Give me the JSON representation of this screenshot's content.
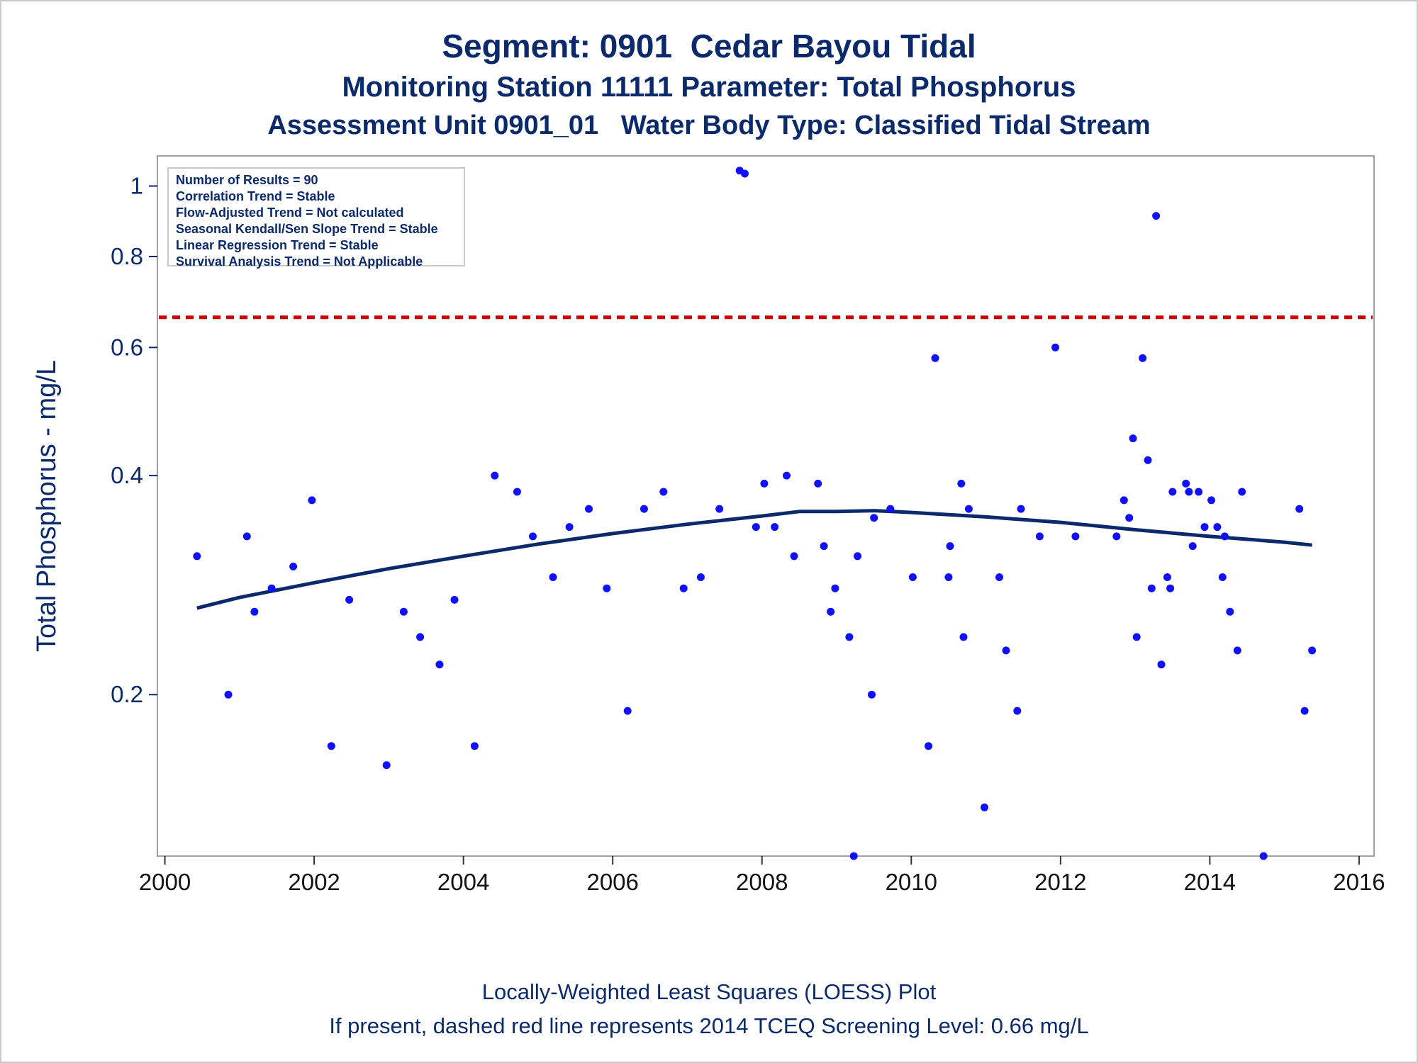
{
  "titles": {
    "line1": "Segment: 0901  Cedar Bayou Tidal",
    "line2": "Monitoring Station 11111 Parameter: Total Phosphorus",
    "line3": "Assessment Unit 0901_01   Water Body Type: Classified Tidal Stream"
  },
  "stats": [
    "Number of Results = 90",
    "Correlation Trend = Stable",
    "Flow-Adjusted Trend = Not calculated",
    "Seasonal Kendall/Sen Slope Trend = Stable",
    "Linear Regression Trend = Stable",
    "Survival Analysis Trend = Not Applicable"
  ],
  "footnotes": {
    "line1": "Locally-Weighted Least Squares (LOESS) Plot",
    "line2": "If present, dashed red line represents 2014 TCEQ Screening Level: 0.66 mg/L"
  },
  "colors": {
    "axis_text": "#0a2a6b",
    "points": "#1010ff",
    "loess": "#0a2a6b",
    "screening_line": "#cc0000",
    "frame": "#a0a0a0"
  },
  "chart_data": {
    "type": "scatter",
    "ylabel": "Total Phosphorus - mg/L",
    "xlabel": "",
    "y_scale": "log",
    "xlim": [
      1999.9,
      2016.2
    ],
    "ylim": [
      0.12,
      1.1
    ],
    "xticks": [
      2000,
      2002,
      2004,
      2006,
      2008,
      2010,
      2012,
      2014,
      2016
    ],
    "yticks": [
      {
        "value": 0.2,
        "label": "0.2"
      },
      {
        "value": 0.4,
        "label": "0.4"
      },
      {
        "value": 0.6,
        "label": "0.6"
      },
      {
        "value": 0.8,
        "label": "0.8"
      },
      {
        "value": 1.0,
        "label": "1"
      }
    ],
    "screening_level": 0.66,
    "legend": "none",
    "grid": false,
    "points": [
      [
        2000.43,
        0.31
      ],
      [
        2000.85,
        0.2
      ],
      [
        2001.1,
        0.33
      ],
      [
        2001.2,
        0.26
      ],
      [
        2001.43,
        0.28
      ],
      [
        2001.72,
        0.3
      ],
      [
        2001.97,
        0.37
      ],
      [
        2002.23,
        0.17
      ],
      [
        2002.47,
        0.27
      ],
      [
        2002.97,
        0.16
      ],
      [
        2003.2,
        0.26
      ],
      [
        2003.42,
        0.24
      ],
      [
        2003.68,
        0.22
      ],
      [
        2003.88,
        0.27
      ],
      [
        2004.15,
        0.17
      ],
      [
        2004.42,
        0.4
      ],
      [
        2004.72,
        0.38
      ],
      [
        2004.93,
        0.33
      ],
      [
        2005.2,
        0.29
      ],
      [
        2005.42,
        0.34
      ],
      [
        2005.68,
        0.36
      ],
      [
        2005.92,
        0.28
      ],
      [
        2006.2,
        0.19
      ],
      [
        2006.42,
        0.36
      ],
      [
        2006.68,
        0.38
      ],
      [
        2006.95,
        0.28
      ],
      [
        2007.18,
        0.29
      ],
      [
        2007.43,
        0.36
      ],
      [
        2007.7,
        1.05
      ],
      [
        2007.77,
        1.04
      ],
      [
        2007.92,
        0.34
      ],
      [
        2008.03,
        0.39
      ],
      [
        2008.17,
        0.34
      ],
      [
        2008.33,
        0.4
      ],
      [
        2008.43,
        0.31
      ],
      [
        2008.75,
        0.39
      ],
      [
        2008.83,
        0.32
      ],
      [
        2008.92,
        0.26
      ],
      [
        2008.98,
        0.28
      ],
      [
        2009.17,
        0.24
      ],
      [
        2009.23,
        0.12
      ],
      [
        2009.28,
        0.31
      ],
      [
        2009.47,
        0.2
      ],
      [
        2009.5,
        0.35
      ],
      [
        2009.72,
        0.36
      ],
      [
        2010.02,
        0.29
      ],
      [
        2010.23,
        0.17
      ],
      [
        2010.32,
        0.58
      ],
      [
        2010.5,
        0.29
      ],
      [
        2010.52,
        0.32
      ],
      [
        2010.67,
        0.39
      ],
      [
        2010.7,
        0.24
      ],
      [
        2010.77,
        0.36
      ],
      [
        2010.98,
        0.14
      ],
      [
        2011.18,
        0.29
      ],
      [
        2011.27,
        0.23
      ],
      [
        2011.42,
        0.19
      ],
      [
        2011.47,
        0.36
      ],
      [
        2011.72,
        0.33
      ],
      [
        2011.93,
        0.6
      ],
      [
        2012.2,
        0.33
      ],
      [
        2012.75,
        0.33
      ],
      [
        2012.85,
        0.37
      ],
      [
        2012.92,
        0.35
      ],
      [
        2012.97,
        0.45
      ],
      [
        2013.02,
        0.24
      ],
      [
        2013.1,
        0.58
      ],
      [
        2013.17,
        0.42
      ],
      [
        2013.22,
        0.28
      ],
      [
        2013.28,
        0.91
      ],
      [
        2013.35,
        0.22
      ],
      [
        2013.43,
        0.29
      ],
      [
        2013.47,
        0.28
      ],
      [
        2013.5,
        0.38
      ],
      [
        2013.68,
        0.39
      ],
      [
        2013.72,
        0.38
      ],
      [
        2013.77,
        0.32
      ],
      [
        2013.85,
        0.38
      ],
      [
        2013.93,
        0.34
      ],
      [
        2014.02,
        0.37
      ],
      [
        2014.1,
        0.34
      ],
      [
        2014.17,
        0.29
      ],
      [
        2014.2,
        0.33
      ],
      [
        2014.27,
        0.26
      ],
      [
        2014.37,
        0.23
      ],
      [
        2014.43,
        0.38
      ],
      [
        2014.72,
        0.12
      ],
      [
        2015.2,
        0.36
      ],
      [
        2015.27,
        0.19
      ],
      [
        2015.37,
        0.23
      ]
    ],
    "loess": [
      [
        2000.43,
        0.263
      ],
      [
        2001.0,
        0.272
      ],
      [
        2002.0,
        0.285
      ],
      [
        2003.0,
        0.298
      ],
      [
        2004.0,
        0.31
      ],
      [
        2005.0,
        0.322
      ],
      [
        2006.0,
        0.333
      ],
      [
        2007.0,
        0.343
      ],
      [
        2008.0,
        0.352
      ],
      [
        2008.5,
        0.357
      ],
      [
        2009.0,
        0.357
      ],
      [
        2009.5,
        0.358
      ],
      [
        2010.0,
        0.356
      ],
      [
        2011.0,
        0.351
      ],
      [
        2012.0,
        0.345
      ],
      [
        2013.0,
        0.337
      ],
      [
        2014.0,
        0.33
      ],
      [
        2015.0,
        0.324
      ],
      [
        2015.37,
        0.321
      ]
    ]
  }
}
